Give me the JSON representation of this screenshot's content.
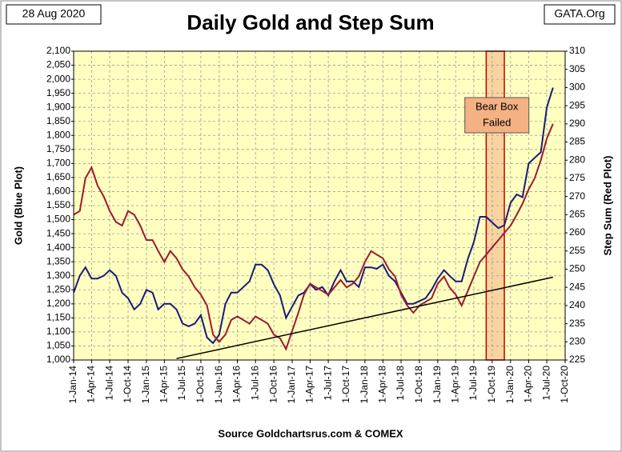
{
  "chart_data": {
    "type": "line",
    "title": "Daily Gold and Step Sum",
    "date_label": "28 Aug 2020",
    "source_label": "GATA.Org",
    "xlabel": "Source Goldchartsrus.com & COMEX",
    "ylabel": "Gold   (Blue Plot)",
    "y2label": "Step Sum   (Red Plot)",
    "x": [
      "1-Jan-14",
      "1-Feb-14",
      "1-Mar-14",
      "1-Apr-14",
      "1-May-14",
      "1-Jun-14",
      "1-Jul-14",
      "1-Aug-14",
      "1-Sep-14",
      "1-Oct-14",
      "1-Nov-14",
      "1-Dec-14",
      "1-Jan-15",
      "1-Feb-15",
      "1-Mar-15",
      "1-Apr-15",
      "1-May-15",
      "1-Jun-15",
      "1-Jul-15",
      "1-Aug-15",
      "1-Sep-15",
      "1-Oct-15",
      "1-Nov-15",
      "1-Dec-15",
      "1-Jan-16",
      "1-Feb-16",
      "1-Mar-16",
      "1-Apr-16",
      "1-May-16",
      "1-Jun-16",
      "1-Jul-16",
      "1-Aug-16",
      "1-Sep-16",
      "1-Oct-16",
      "1-Nov-16",
      "1-Dec-16",
      "1-Jan-17",
      "1-Feb-17",
      "1-Mar-17",
      "1-Apr-17",
      "1-May-17",
      "1-Jun-17",
      "1-Jul-17",
      "1-Aug-17",
      "1-Sep-17",
      "1-Oct-17",
      "1-Nov-17",
      "1-Dec-17",
      "1-Jan-18",
      "1-Feb-18",
      "1-Mar-18",
      "1-Apr-18",
      "1-May-18",
      "1-Jun-18",
      "1-Jul-18",
      "1-Aug-18",
      "1-Sep-18",
      "1-Oct-18",
      "1-Nov-18",
      "1-Dec-18",
      "1-Jan-19",
      "1-Feb-19",
      "1-Mar-19",
      "1-Apr-19",
      "1-May-19",
      "1-Jun-19",
      "1-Jul-19",
      "1-Aug-19",
      "1-Sep-19",
      "1-Oct-19",
      "1-Nov-19",
      "1-Dec-19",
      "1-Jan-20",
      "1-Feb-20",
      "1-Mar-20",
      "1-Apr-20",
      "1-May-20",
      "1-Jun-20",
      "1-Jul-20",
      "1-Aug-20"
    ],
    "series": [
      {
        "name": "Gold",
        "color": "#1a1a7a",
        "axis": "y",
        "values": [
          1240,
          1300,
          1330,
          1290,
          1290,
          1300,
          1320,
          1300,
          1240,
          1220,
          1180,
          1200,
          1250,
          1240,
          1180,
          1200,
          1200,
          1180,
          1130,
          1120,
          1130,
          1160,
          1080,
          1060,
          1090,
          1200,
          1240,
          1240,
          1260,
          1280,
          1340,
          1340,
          1320,
          1270,
          1230,
          1150,
          1190,
          1230,
          1240,
          1270,
          1250,
          1260,
          1230,
          1280,
          1320,
          1280,
          1280,
          1260,
          1330,
          1330,
          1325,
          1340,
          1300,
          1280,
          1240,
          1200,
          1200,
          1210,
          1220,
          1250,
          1290,
          1320,
          1300,
          1280,
          1280,
          1360,
          1420,
          1510,
          1510,
          1490,
          1470,
          1480,
          1560,
          1590,
          1580,
          1700,
          1720,
          1740,
          1900,
          1970
        ]
      },
      {
        "name": "Step Sum",
        "color": "#9b1b30",
        "axis": "y2",
        "values": [
          265,
          266,
          275,
          278,
          273,
          270,
          266,
          263,
          262,
          266,
          265,
          262,
          258,
          258,
          255,
          252,
          255,
          253,
          250,
          248,
          245,
          243,
          240,
          232,
          230,
          232,
          236,
          237,
          236,
          235,
          237,
          236,
          235,
          232,
          231,
          228,
          233,
          238,
          243,
          246,
          245,
          244,
          243,
          245,
          247,
          245,
          246,
          248,
          252,
          255,
          254,
          253,
          250,
          248,
          243,
          240,
          238,
          240,
          241,
          242,
          246,
          248,
          245,
          243,
          240,
          244,
          248,
          252,
          254,
          256,
          258,
          260,
          262,
          265,
          268,
          272,
          275,
          280,
          286,
          290
        ]
      }
    ],
    "trendline": {
      "x": [
        "1-Jun-15",
        "1-Aug-20"
      ],
      "values": [
        1005,
        1295
      ],
      "color": "#000000"
    },
    "bear_box": {
      "x": [
        "1-Sep-19",
        "1-Dec-19"
      ],
      "label": [
        "Bear Box",
        "Failed"
      ],
      "color": "#f4b183"
    },
    "xlim": [
      "1-Jan-14",
      "1-Oct-20"
    ],
    "xticks": [
      "1-Jan-14",
      "1-Apr-14",
      "1-Jul-14",
      "1-Oct-14",
      "1-Jan-15",
      "1-Apr-15",
      "1-Jul-15",
      "1-Oct-15",
      "1-Jan-16",
      "1-Apr-16",
      "1-Jul-16",
      "1-Oct-16",
      "1-Jan-17",
      "1-Apr-17",
      "1-Jul-17",
      "1-Oct-17",
      "1-Jan-18",
      "1-Apr-18",
      "1-Jul-18",
      "1-Oct-18",
      "1-Jan-19",
      "1-Apr-19",
      "1-Jul-19",
      "1-Oct-19",
      "1-Jan-20",
      "1-Apr-20",
      "1-Jul-20",
      "1-Oct-20"
    ],
    "ylim": [
      1000,
      2100
    ],
    "yticks": [
      {
        "value": 1000,
        "label": "1,000"
      },
      {
        "value": 1050,
        "label": "1,050"
      },
      {
        "value": 1100,
        "label": "1,100"
      },
      {
        "value": 1150,
        "label": "1,150"
      },
      {
        "value": 1200,
        "label": "1,200"
      },
      {
        "value": 1250,
        "label": "1,250"
      },
      {
        "value": 1300,
        "label": "1,300"
      },
      {
        "value": 1350,
        "label": "1,350"
      },
      {
        "value": 1400,
        "label": "1,400"
      },
      {
        "value": 1450,
        "label": "1,450"
      },
      {
        "value": 1500,
        "label": "1,500"
      },
      {
        "value": 1550,
        "label": "1,550"
      },
      {
        "value": 1600,
        "label": "1,600"
      },
      {
        "value": 1650,
        "label": "1,650"
      },
      {
        "value": 1700,
        "label": "1,700"
      },
      {
        "value": 1750,
        "label": "1,750"
      },
      {
        "value": 1800,
        "label": "1,800"
      },
      {
        "value": 1850,
        "label": "1,850"
      },
      {
        "value": 1900,
        "label": "1,900"
      },
      {
        "value": 1950,
        "label": "1,950"
      },
      {
        "value": 2000,
        "label": "2,000"
      },
      {
        "value": 2050,
        "label": "2,050"
      },
      {
        "value": 2100,
        "label": "2,100"
      }
    ],
    "y2lim": [
      225,
      310
    ],
    "y2ticks": [
      225,
      230,
      235,
      240,
      245,
      250,
      255,
      260,
      265,
      270,
      275,
      280,
      285,
      290,
      295,
      300,
      305,
      310
    ],
    "grid": true,
    "plot_color": "#ffffc0"
  }
}
